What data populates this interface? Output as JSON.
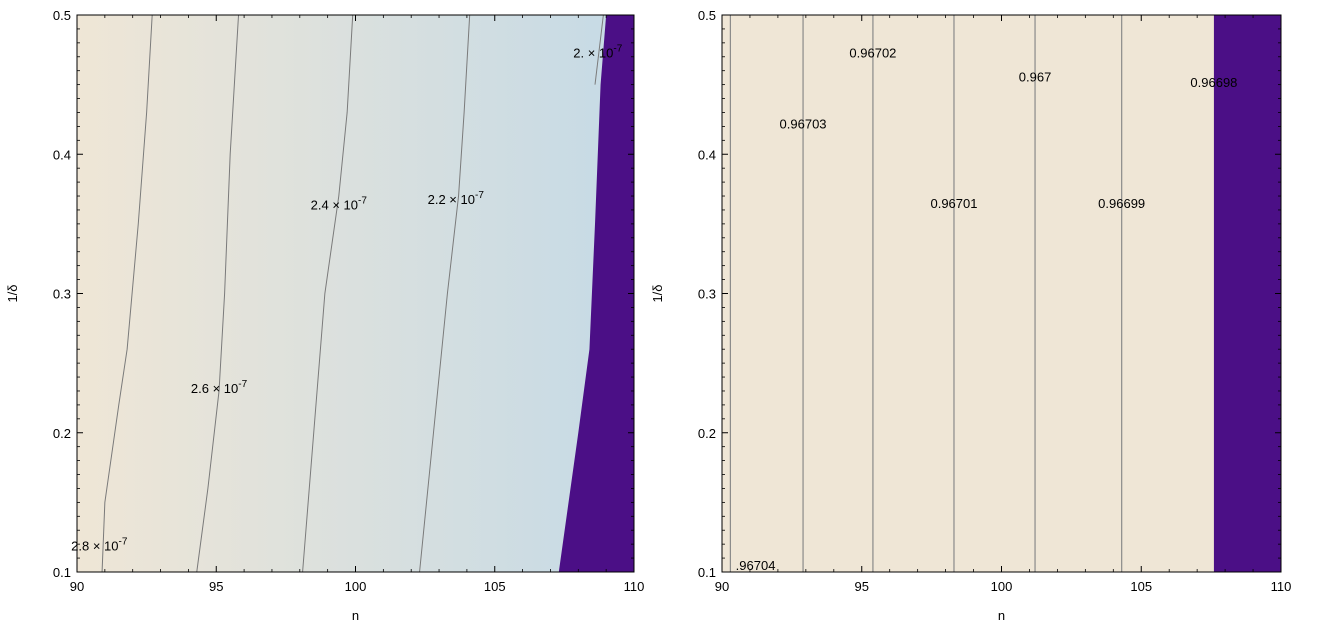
{
  "chart_data": [
    {
      "type": "contour",
      "xlabel": "n",
      "ylabel": "1/δ",
      "xlim": [
        90,
        110
      ],
      "ylim": [
        0.1,
        0.5
      ],
      "xticks": [
        90,
        95,
        100,
        105,
        110
      ],
      "yticks": [
        0.1,
        0.2,
        0.3,
        0.4,
        0.5
      ],
      "colors": {
        "left_fill": "#efe6d6",
        "right_fill": "#c5dae6",
        "region_cutoff": "#4b0f86",
        "contour_line": "#7a7a7a"
      },
      "cutoff_boundary": [
        [
          107.3,
          0.1
        ],
        [
          108.0,
          0.2
        ],
        [
          108.4,
          0.26
        ],
        [
          108.6,
          0.35
        ],
        [
          108.8,
          0.45
        ],
        [
          109.0,
          0.5
        ]
      ],
      "contours": [
        {
          "label": "2.8 × 10⁻⁷",
          "label_at": [
            90.8,
            0.119
          ],
          "points": [
            [
              90.9,
              0.1
            ],
            [
              91.0,
              0.15
            ],
            [
              91.5,
              0.22
            ],
            [
              91.8,
              0.26
            ],
            [
              92.2,
              0.35
            ],
            [
              92.5,
              0.43
            ],
            [
              92.7,
              0.5
            ]
          ]
        },
        {
          "label": "2.6 × 10⁻⁷",
          "label_at": [
            95.1,
            0.232
          ],
          "points": [
            [
              94.3,
              0.1
            ],
            [
              94.7,
              0.16
            ],
            [
              95.1,
              0.23
            ],
            [
              95.3,
              0.3
            ],
            [
              95.5,
              0.4
            ],
            [
              95.8,
              0.5
            ]
          ]
        },
        {
          "label": "2.4 × 10⁻⁷",
          "label_at": [
            99.4,
            0.364
          ],
          "points": [
            [
              98.1,
              0.1
            ],
            [
              98.5,
              0.2
            ],
            [
              98.9,
              0.3
            ],
            [
              99.4,
              0.37
            ],
            [
              99.7,
              0.43
            ],
            [
              99.9,
              0.5
            ]
          ]
        },
        {
          "label": "2.2 × 10⁻⁷",
          "label_at": [
            103.6,
            0.368
          ],
          "points": [
            [
              102.3,
              0.1
            ],
            [
              102.8,
              0.2
            ],
            [
              103.3,
              0.3
            ],
            [
              103.7,
              0.37
            ],
            [
              103.9,
              0.43
            ],
            [
              104.1,
              0.5
            ]
          ]
        },
        {
          "label": "2. × 10⁻⁷",
          "label_at": [
            108.7,
            0.473
          ],
          "points": [
            [
              108.6,
              0.45
            ],
            [
              108.9,
              0.5
            ]
          ]
        }
      ]
    },
    {
      "type": "contour",
      "xlabel": "n",
      "ylabel": "1/δ",
      "xlim": [
        90,
        110
      ],
      "ylim": [
        0.1,
        0.5
      ],
      "xticks": [
        90,
        95,
        100,
        105,
        110
      ],
      "yticks": [
        0.1,
        0.2,
        0.3,
        0.4,
        0.5
      ],
      "colors": {
        "fill": "#efe6d6",
        "region_cutoff": "#4b0f86",
        "contour_line": "#8a8a8a"
      },
      "cutoff_boundary": [
        [
          107.6,
          0.1
        ],
        [
          107.6,
          0.5
        ]
      ],
      "contours": [
        {
          "label": ".96704",
          "label_at": [
            91.2,
            0.105
          ],
          "x": 90.3
        },
        {
          "label": "0.96703",
          "label_at": [
            92.9,
            0.422
          ],
          "x": 92.9
        },
        {
          "label": "0.96702",
          "label_at": [
            95.4,
            0.473
          ],
          "x": 95.4
        },
        {
          "label": "0.96701",
          "label_at": [
            98.3,
            0.365
          ],
          "x": 98.3
        },
        {
          "label": "0.967",
          "label_at": [
            101.2,
            0.456
          ],
          "x": 101.2
        },
        {
          "label": "0.96699",
          "label_at": [
            104.3,
            0.365
          ],
          "x": 104.3
        },
        {
          "label": "0.96698",
          "label_at": [
            107.6,
            0.452
          ],
          "x": null
        }
      ]
    }
  ]
}
